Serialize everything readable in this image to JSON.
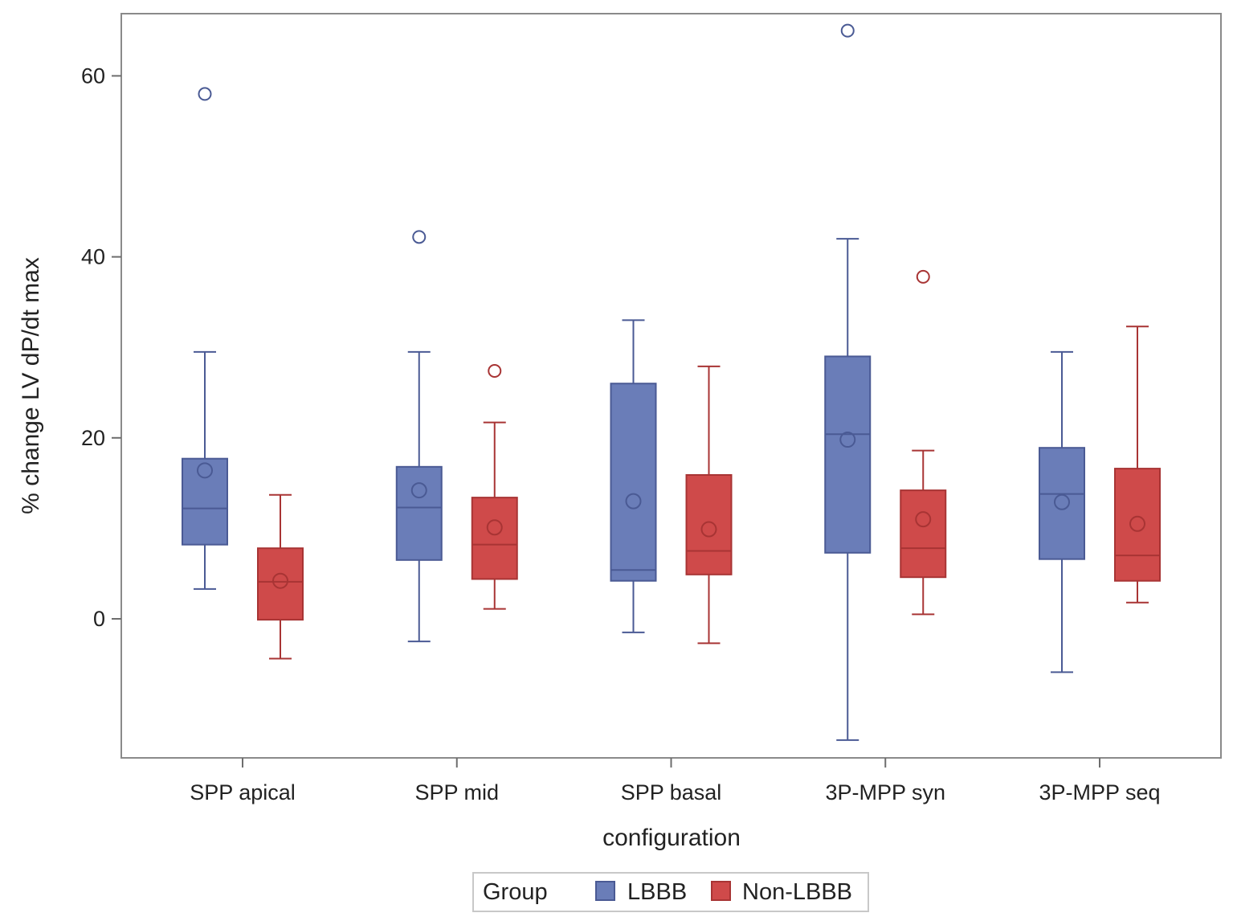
{
  "chart_data": {
    "type": "box",
    "xlabel": "configuration",
    "ylabel": "% change LV dP/dt max",
    "ylim": [
      -16,
      67
    ],
    "yticks": [
      0,
      20,
      40,
      60
    ],
    "categories": [
      "SPP apical",
      "SPP mid",
      "SPP basal",
      "3P-MPP syn",
      "3P-MPP seq"
    ],
    "legend": {
      "title": "Group",
      "position": "bottom-center",
      "entries": [
        "LBBB",
        "Non-LBBB"
      ]
    },
    "grid": false,
    "series": [
      {
        "name": "LBBB",
        "color": "#6a7db8",
        "stroke": "#4a5a94",
        "boxes": [
          {
            "min": 3.3,
            "q1": 8.2,
            "median": 12.2,
            "q3": 17.7,
            "max": 29.5,
            "mean": 16.4,
            "outliers": [
              58.0
            ]
          },
          {
            "min": -2.5,
            "q1": 6.5,
            "median": 12.3,
            "q3": 16.8,
            "max": 29.5,
            "mean": 14.2,
            "outliers": [
              42.2
            ]
          },
          {
            "min": -1.5,
            "q1": 4.2,
            "median": 5.4,
            "q3": 26.0,
            "max": 33.0,
            "mean": 13.0,
            "outliers": []
          },
          {
            "min": -13.4,
            "q1": 7.3,
            "median": 20.4,
            "q3": 29.0,
            "max": 42.0,
            "mean": 19.8,
            "outliers": [
              65.0
            ]
          },
          {
            "min": -5.9,
            "q1": 6.6,
            "median": 13.8,
            "q3": 18.9,
            "max": 29.5,
            "mean": 12.9,
            "outliers": []
          }
        ]
      },
      {
        "name": "Non-LBBB",
        "color": "#cf4a4a",
        "stroke": "#a83434",
        "boxes": [
          {
            "min": -4.4,
            "q1": -0.1,
            "median": 4.1,
            "q3": 7.8,
            "max": 13.7,
            "mean": 4.2,
            "outliers": []
          },
          {
            "min": 1.1,
            "q1": 4.4,
            "median": 8.2,
            "q3": 13.4,
            "max": 21.7,
            "mean": 10.1,
            "outliers": [
              27.4
            ]
          },
          {
            "min": -2.7,
            "q1": 4.9,
            "median": 7.5,
            "q3": 15.9,
            "max": 27.9,
            "mean": 9.9,
            "outliers": []
          },
          {
            "min": 0.5,
            "q1": 4.6,
            "median": 7.8,
            "q3": 14.2,
            "max": 18.6,
            "mean": 11.0,
            "outliers": [
              37.8
            ]
          },
          {
            "min": 1.8,
            "q1": 4.2,
            "median": 7.0,
            "q3": 16.6,
            "max": 32.3,
            "mean": 10.5,
            "outliers": []
          }
        ]
      }
    ]
  }
}
